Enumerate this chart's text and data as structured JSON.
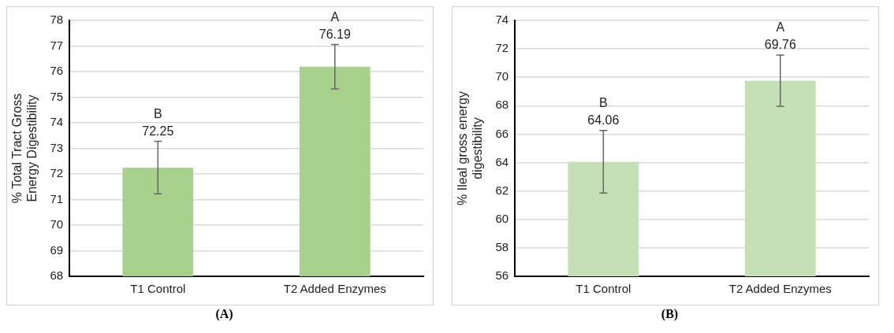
{
  "chart_data": [
    {
      "type": "bar",
      "ylabel": "% Total Tract Gross Energy Digestibility",
      "categories": [
        "T1 Control",
        "T2 Added Enzymes"
      ],
      "values": [
        72.25,
        76.19
      ],
      "color": "#a9d18e",
      "errors": [
        1.03,
        0.87
      ],
      "ylim": [
        68,
        78
      ],
      "yticks": [
        68,
        69,
        70,
        71,
        72,
        73,
        74,
        75,
        76,
        77,
        78
      ],
      "grid": "y",
      "data_labels": true,
      "legend": false,
      "annotations": [
        "B",
        "A",
        "(A)"
      ]
    },
    {
      "type": "bar",
      "ylabel": "% Ileal gross energy digestibility",
      "categories": [
        "T1 Control",
        "T2 Added Enzymes"
      ],
      "values": [
        64.06,
        69.76
      ],
      "color": "#c5e0b4",
      "errors": [
        2.2,
        1.8
      ],
      "ylim": [
        56,
        74
      ],
      "yticks": [
        56,
        58,
        60,
        62,
        64,
        66,
        68,
        70,
        72,
        74
      ],
      "grid": "y",
      "data_labels": true,
      "legend": false,
      "annotations": [
        "B",
        "A",
        "(B)"
      ]
    }
  ]
}
